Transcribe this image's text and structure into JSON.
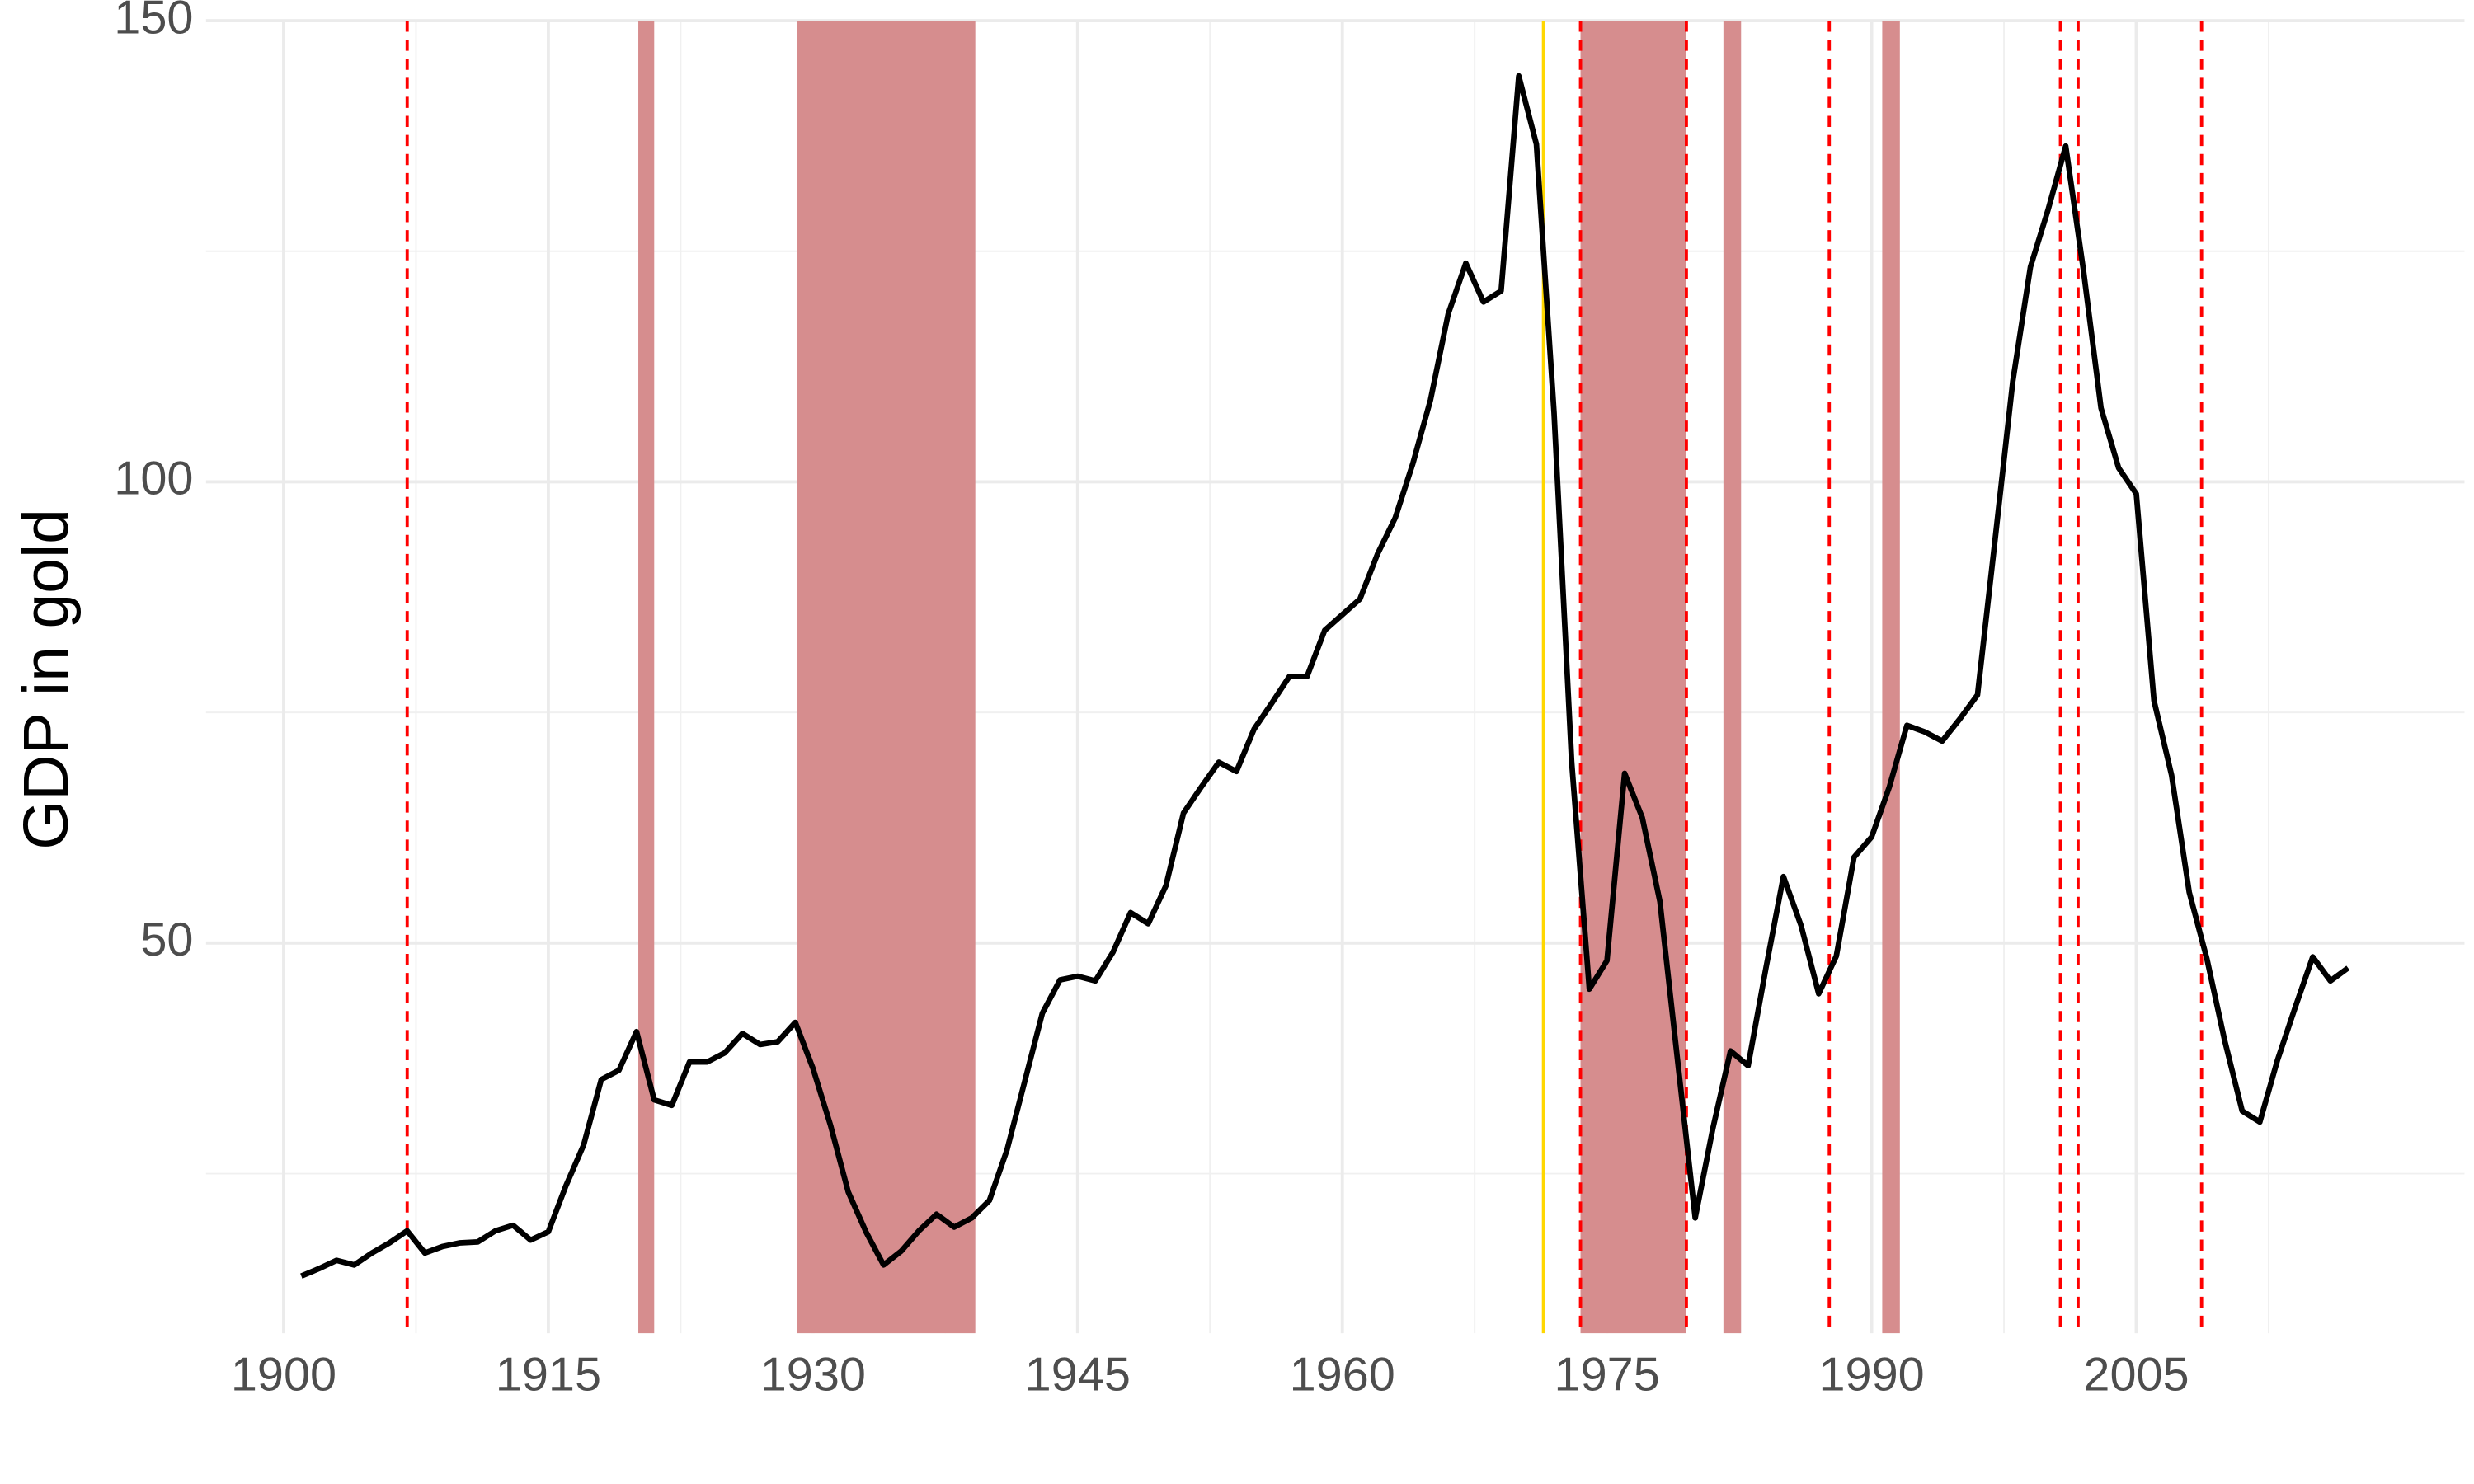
{
  "chart_data": {
    "type": "line",
    "y_label": "GDP in gold",
    "x": [
      1901,
      1902,
      1903,
      1904,
      1905,
      1906,
      1907,
      1908,
      1909,
      1910,
      1911,
      1912,
      1913,
      1914,
      1915,
      1916,
      1917,
      1918,
      1919,
      1920,
      1921,
      1922,
      1923,
      1924,
      1925,
      1926,
      1927,
      1928,
      1929,
      1930,
      1931,
      1932,
      1933,
      1934,
      1935,
      1936,
      1937,
      1938,
      1939,
      1940,
      1941,
      1942,
      1943,
      1944,
      1945,
      1946,
      1947,
      1948,
      1949,
      1950,
      1951,
      1952,
      1953,
      1954,
      1955,
      1956,
      1957,
      1958,
      1959,
      1960,
      1961,
      1962,
      1963,
      1964,
      1965,
      1966,
      1967,
      1968,
      1969,
      1970,
      1971,
      1972,
      1973,
      1974,
      1975,
      1976,
      1977,
      1978,
      1979,
      1980,
      1981,
      1982,
      1983,
      1984,
      1985,
      1986,
      1987,
      1988,
      1989,
      1990,
      1991,
      1992,
      1993,
      1994,
      1995,
      1996,
      1997,
      1998,
      1999,
      2000,
      2001,
      2002,
      2003,
      2004,
      2005,
      2006,
      2007,
      2008,
      2009,
      2010,
      2011,
      2012,
      2013,
      2014,
      2015,
      2016,
      2017
    ],
    "values": [
      13.9,
      14.7,
      15.6,
      15.1,
      16.4,
      17.5,
      18.8,
      16.4,
      17.1,
      17.5,
      17.6,
      18.8,
      19.4,
      17.8,
      18.7,
      23.7,
      28.1,
      35.2,
      36.2,
      40.4,
      33.0,
      32.4,
      37.1,
      37.1,
      38.1,
      40.2,
      39.0,
      39.3,
      41.4,
      36.4,
      30.2,
      23.0,
      18.7,
      15.1,
      16.6,
      18.8,
      20.6,
      19.2,
      20.2,
      22.1,
      27.6,
      35.0,
      42.4,
      46.0,
      46.4,
      45.9,
      49.0,
      53.3,
      52.1,
      56.2,
      64.1,
      66.9,
      69.6,
      68.6,
      73.2,
      76.0,
      78.9,
      78.9,
      83.9,
      85.6,
      87.3,
      92.2,
      96.1,
      102.0,
      108.9,
      118.2,
      123.7,
      119.5,
      120.7,
      144.0,
      136.6,
      107.5,
      69.6,
      45.0,
      48.1,
      68.4,
      63.6,
      54.5,
      37.3,
      20.2,
      29.9,
      38.3,
      36.7,
      47.2,
      57.2,
      51.9,
      44.5,
      48.6,
      59.3,
      61.5,
      66.9,
      73.6,
      72.9,
      71.9,
      74.3,
      76.9,
      93.8,
      110.9,
      123.3,
      129.5,
      136.4,
      123.0,
      108.0,
      101.5,
      98.7,
      76.3,
      68.2,
      55.5,
      48.3,
      39.5,
      31.8,
      30.6,
      37.3,
      43.0,
      48.5,
      45.9,
      47.3
    ],
    "color": "#000000",
    "xlim": [
      1895.6,
      2023.6
    ],
    "xticks": [
      1900,
      1915,
      1930,
      1945,
      1960,
      1975,
      1990,
      2005
    ],
    "xminor_grid": [
      1907.5,
      1922.5,
      1937.5,
      1952.5,
      1967.5,
      1982.5,
      1997.5,
      2012.5
    ],
    "ylim": [
      7.7,
      150
    ],
    "yticks": [
      50,
      100,
      150
    ],
    "yminor_grid": [
      25,
      75,
      125
    ],
    "grid": true,
    "shaded_periods": [
      [
        1920.1,
        1921.0
      ],
      [
        1929.1,
        1939.2
      ],
      [
        1973.5,
        1979.5
      ],
      [
        1981.6,
        1982.6
      ],
      [
        1990.6,
        1991.6
      ]
    ],
    "shade_color": "#d68d8e",
    "dashed_vlines": [
      1907.0,
      1973.5,
      1979.5,
      1987.6,
      2000.7,
      2001.7,
      2008.7
    ],
    "dashed_color": "#ff0000",
    "solid_vline": 1971.4,
    "solid_vline_color": "#ffd700"
  }
}
